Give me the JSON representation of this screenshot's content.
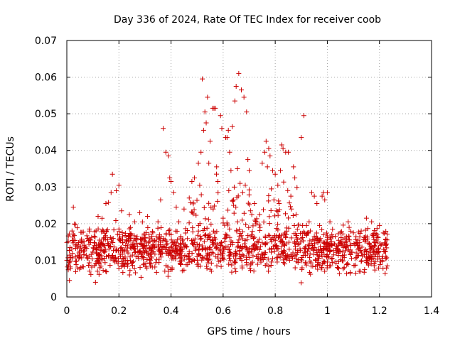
{
  "chart_data": {
    "type": "scatter",
    "title": "Day 336 of 2024, Rate Of TEC Index for receiver coob",
    "xlabel": "GPS time / hours",
    "ylabel": "ROTI / TECUs",
    "xlim": [
      0,
      1.4
    ],
    "ylim": [
      0,
      0.07
    ],
    "grid": true,
    "marker": "+",
    "marker_color": "#cc0000",
    "x_ticks": [
      "0",
      "0.2",
      "0.4",
      "0.6",
      "0.8",
      "1",
      "1.2",
      "1.4"
    ],
    "y_ticks": [
      "0",
      "0.01",
      "0.02",
      "0.03",
      "0.04",
      "0.05",
      "0.06",
      "0.07"
    ],
    "series": [
      {
        "name": "coob",
        "x_range": [
          0.0,
          1.23
        ],
        "bulk_band": [
          0.006,
          0.02
        ],
        "points": [
          [
            0.01,
            0.0045
          ],
          [
            0.02,
            0.018
          ],
          [
            0.025,
            0.0245
          ],
          [
            0.05,
            0.011
          ],
          [
            0.08,
            0.016
          ],
          [
            0.11,
            0.004
          ],
          [
            0.12,
            0.022
          ],
          [
            0.14,
            0.018
          ],
          [
            0.15,
            0.0255
          ],
          [
            0.16,
            0.0258
          ],
          [
            0.17,
            0.0285
          ],
          [
            0.175,
            0.0335
          ],
          [
            0.19,
            0.029
          ],
          [
            0.2,
            0.0305
          ],
          [
            0.21,
            0.0235
          ],
          [
            0.24,
            0.0225
          ],
          [
            0.26,
            0.0205
          ],
          [
            0.28,
            0.023
          ],
          [
            0.31,
            0.022
          ],
          [
            0.33,
            0.0175
          ],
          [
            0.35,
            0.0205
          ],
          [
            0.36,
            0.0265
          ],
          [
            0.37,
            0.046
          ],
          [
            0.38,
            0.0395
          ],
          [
            0.39,
            0.0385
          ],
          [
            0.395,
            0.0325
          ],
          [
            0.4,
            0.0315
          ],
          [
            0.41,
            0.0285
          ],
          [
            0.42,
            0.0245
          ],
          [
            0.43,
            0.0205
          ],
          [
            0.45,
            0.024
          ],
          [
            0.47,
            0.027
          ],
          [
            0.48,
            0.0315
          ],
          [
            0.49,
            0.0325
          ],
          [
            0.505,
            0.0365
          ],
          [
            0.51,
            0.0305
          ],
          [
            0.515,
            0.0395
          ],
          [
            0.52,
            0.0595
          ],
          [
            0.525,
            0.0455
          ],
          [
            0.53,
            0.0505
          ],
          [
            0.535,
            0.0475
          ],
          [
            0.54,
            0.0545
          ],
          [
            0.545,
            0.0365
          ],
          [
            0.55,
            0.0425
          ],
          [
            0.56,
            0.0515
          ],
          [
            0.565,
            0.0515
          ],
          [
            0.57,
            0.0515
          ],
          [
            0.575,
            0.0355
          ],
          [
            0.58,
            0.0315
          ],
          [
            0.59,
            0.0495
          ],
          [
            0.595,
            0.046
          ],
          [
            0.6,
            0.0215
          ],
          [
            0.61,
            0.0435
          ],
          [
            0.615,
            0.0435
          ],
          [
            0.62,
            0.0455
          ],
          [
            0.625,
            0.0395
          ],
          [
            0.63,
            0.0345
          ],
          [
            0.635,
            0.0465
          ],
          [
            0.64,
            0.0265
          ],
          [
            0.645,
            0.0535
          ],
          [
            0.65,
            0.0575
          ],
          [
            0.655,
            0.035
          ],
          [
            0.66,
            0.061
          ],
          [
            0.665,
            0.031
          ],
          [
            0.67,
            0.0565
          ],
          [
            0.675,
            0.0285
          ],
          [
            0.68,
            0.0545
          ],
          [
            0.685,
            0.0305
          ],
          [
            0.69,
            0.0505
          ],
          [
            0.695,
            0.0375
          ],
          [
            0.7,
            0.0345
          ],
          [
            0.705,
            0.0235
          ],
          [
            0.71,
            0.0225
          ],
          [
            0.72,
            0.0255
          ],
          [
            0.73,
            0.0205
          ],
          [
            0.74,
            0.0225
          ],
          [
            0.75,
            0.0365
          ],
          [
            0.76,
            0.0395
          ],
          [
            0.765,
            0.0425
          ],
          [
            0.77,
            0.0355
          ],
          [
            0.775,
            0.0405
          ],
          [
            0.78,
            0.0385
          ],
          [
            0.785,
            0.0295
          ],
          [
            0.79,
            0.0345
          ],
          [
            0.795,
            0.0265
          ],
          [
            0.8,
            0.0335
          ],
          [
            0.805,
            0.0235
          ],
          [
            0.81,
            0.0305
          ],
          [
            0.815,
            0.0255
          ],
          [
            0.82,
            0.0345
          ],
          [
            0.825,
            0.0415
          ],
          [
            0.83,
            0.0405
          ],
          [
            0.84,
            0.0395
          ],
          [
            0.85,
            0.0395
          ],
          [
            0.86,
            0.0275
          ],
          [
            0.87,
            0.0355
          ],
          [
            0.875,
            0.0325
          ],
          [
            0.88,
            0.0225
          ],
          [
            0.885,
            0.0185
          ],
          [
            0.9,
            0.0435
          ],
          [
            0.905,
            0.0195
          ],
          [
            0.91,
            0.0495
          ],
          [
            0.92,
            0.0195
          ],
          [
            0.93,
            0.0205
          ],
          [
            0.94,
            0.0285
          ],
          [
            0.95,
            0.0275
          ],
          [
            0.96,
            0.0255
          ],
          [
            0.97,
            0.0195
          ],
          [
            0.98,
            0.0275
          ],
          [
            0.985,
            0.0285
          ],
          [
            0.99,
            0.0265
          ],
          [
            1.0,
            0.0285
          ],
          [
            1.01,
            0.0205
          ],
          [
            1.02,
            0.0185
          ],
          [
            1.05,
            0.0145
          ],
          [
            1.08,
            0.0205
          ],
          [
            1.1,
            0.0175
          ],
          [
            1.13,
            0.018
          ],
          [
            1.15,
            0.0215
          ],
          [
            1.17,
            0.0205
          ],
          [
            1.19,
            0.017
          ],
          [
            1.2,
            0.0195
          ],
          [
            1.22,
            0.0125
          ],
          [
            1.23,
            0.0085
          ]
        ]
      }
    ]
  }
}
